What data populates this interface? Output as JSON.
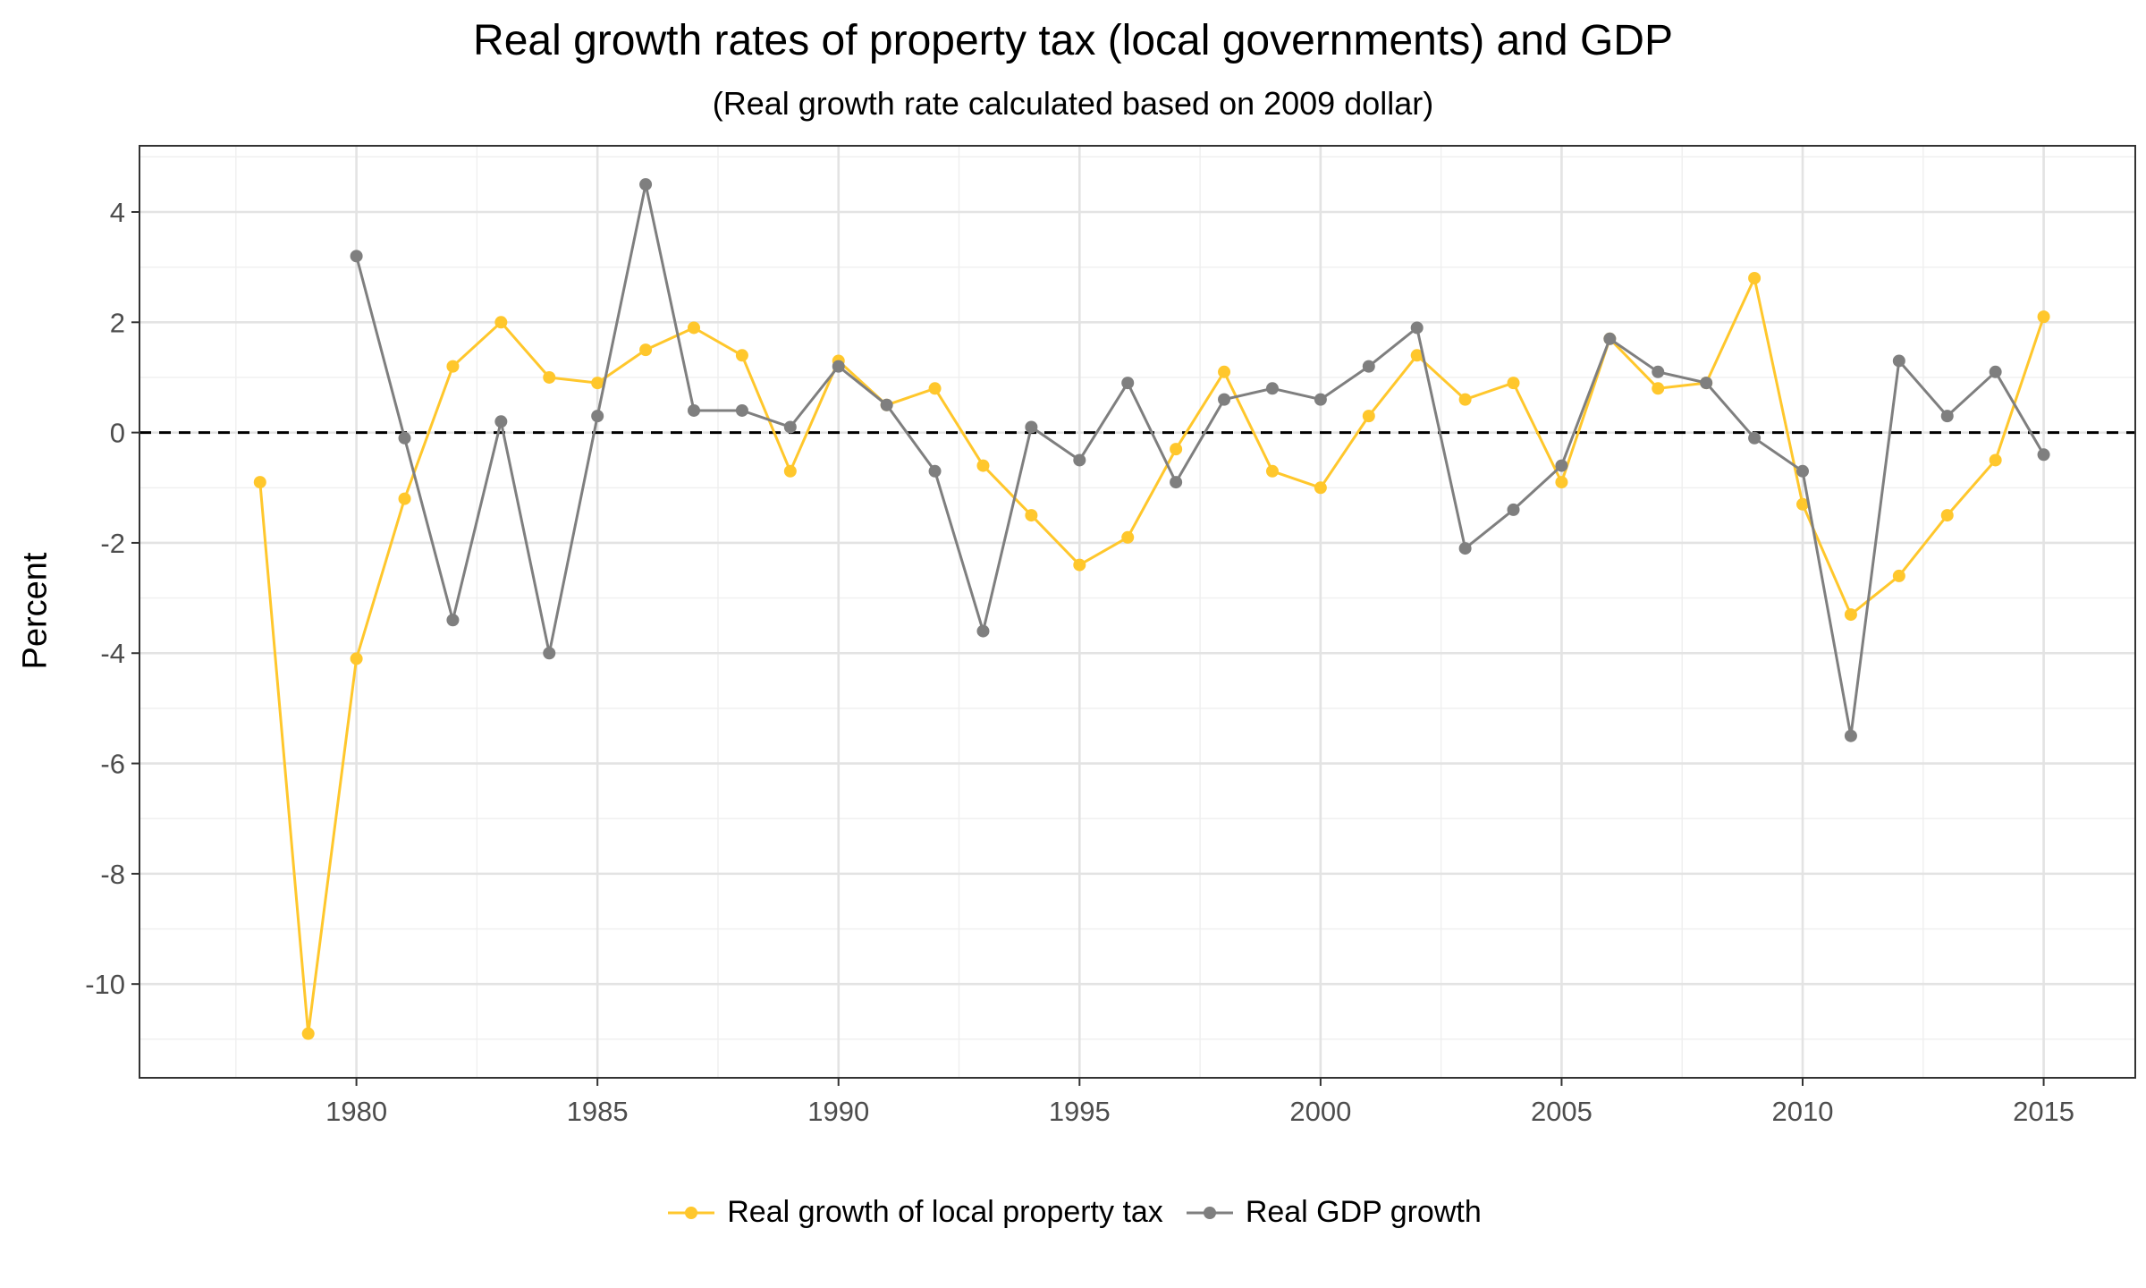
{
  "colors": {
    "tax": "#FFC72C",
    "gdp": "#7F7F7F"
  },
  "chart_data": {
    "type": "line",
    "title": "Real growth rates of property tax (local governments) and GDP",
    "subtitle": "(Real growth rate calculated based on 2009 dollar)",
    "xlabel": "",
    "ylabel": "Percent",
    "xlim": [
      1975.5,
      2016.9
    ],
    "ylim": [
      -11.7,
      5.2
    ],
    "x_ticks": [
      1980,
      1985,
      1990,
      1995,
      2000,
      2005,
      2010,
      2015
    ],
    "y_ticks": [
      4,
      2,
      0,
      -2,
      -4,
      -6,
      -8,
      -10
    ],
    "y_tick_labels": [
      "4",
      "2",
      "0",
      "-2",
      "-4",
      "-6",
      "-8",
      "-10"
    ],
    "grid": true,
    "reference_line": {
      "y": 0,
      "style": "dashed"
    },
    "legend_position": "bottom",
    "series": [
      {
        "name": "Real growth of local property tax",
        "color": "#FFC72C",
        "x": [
          1978,
          1979,
          1980,
          1981,
          1982,
          1983,
          1984,
          1985,
          1986,
          1987,
          1988,
          1989,
          1990,
          1991,
          1992,
          1993,
          1994,
          1995,
          1996,
          1997,
          1998,
          1999,
          2000,
          2001,
          2002,
          2003,
          2004,
          2005,
          2006,
          2007,
          2008,
          2009,
          2010,
          2011,
          2012,
          2013,
          2014,
          2015
        ],
        "values": [
          -0.9,
          -10.9,
          -4.1,
          -1.2,
          1.2,
          2.0,
          1.0,
          0.9,
          1.5,
          1.9,
          1.4,
          -0.7,
          1.3,
          0.5,
          0.8,
          -0.6,
          -1.5,
          -2.4,
          -1.9,
          -0.3,
          1.1,
          -0.7,
          -1.0,
          0.3,
          1.4,
          0.6,
          0.9,
          -0.9,
          1.7,
          0.8,
          0.9,
          2.8,
          -1.3,
          -3.3,
          -2.6,
          -1.5,
          -0.5,
          2.1
        ]
      },
      {
        "name": "Real GDP growth",
        "color": "#7F7F7F",
        "x": [
          1980,
          1981,
          1982,
          1983,
          1984,
          1985,
          1986,
          1987,
          1988,
          1989,
          1990,
          1991,
          1992,
          1993,
          1994,
          1995,
          1996,
          1997,
          1998,
          1999,
          2000,
          2001,
          2002,
          2003,
          2004,
          2005,
          2006,
          2007,
          2008,
          2009,
          2010,
          2011,
          2012,
          2013,
          2014,
          2015
        ],
        "values": [
          3.2,
          -0.1,
          -3.4,
          0.2,
          -4.0,
          0.3,
          4.5,
          0.4,
          0.4,
          0.1,
          1.2,
          0.5,
          -0.7,
          -3.6,
          0.1,
          -0.5,
          0.9,
          -0.9,
          0.6,
          0.8,
          0.6,
          1.2,
          1.9,
          -2.1,
          -1.4,
          -0.6,
          1.7,
          1.1,
          0.9,
          -0.1,
          -0.7,
          -5.5,
          1.3,
          0.3,
          1.1,
          -0.4
        ]
      }
    ]
  }
}
